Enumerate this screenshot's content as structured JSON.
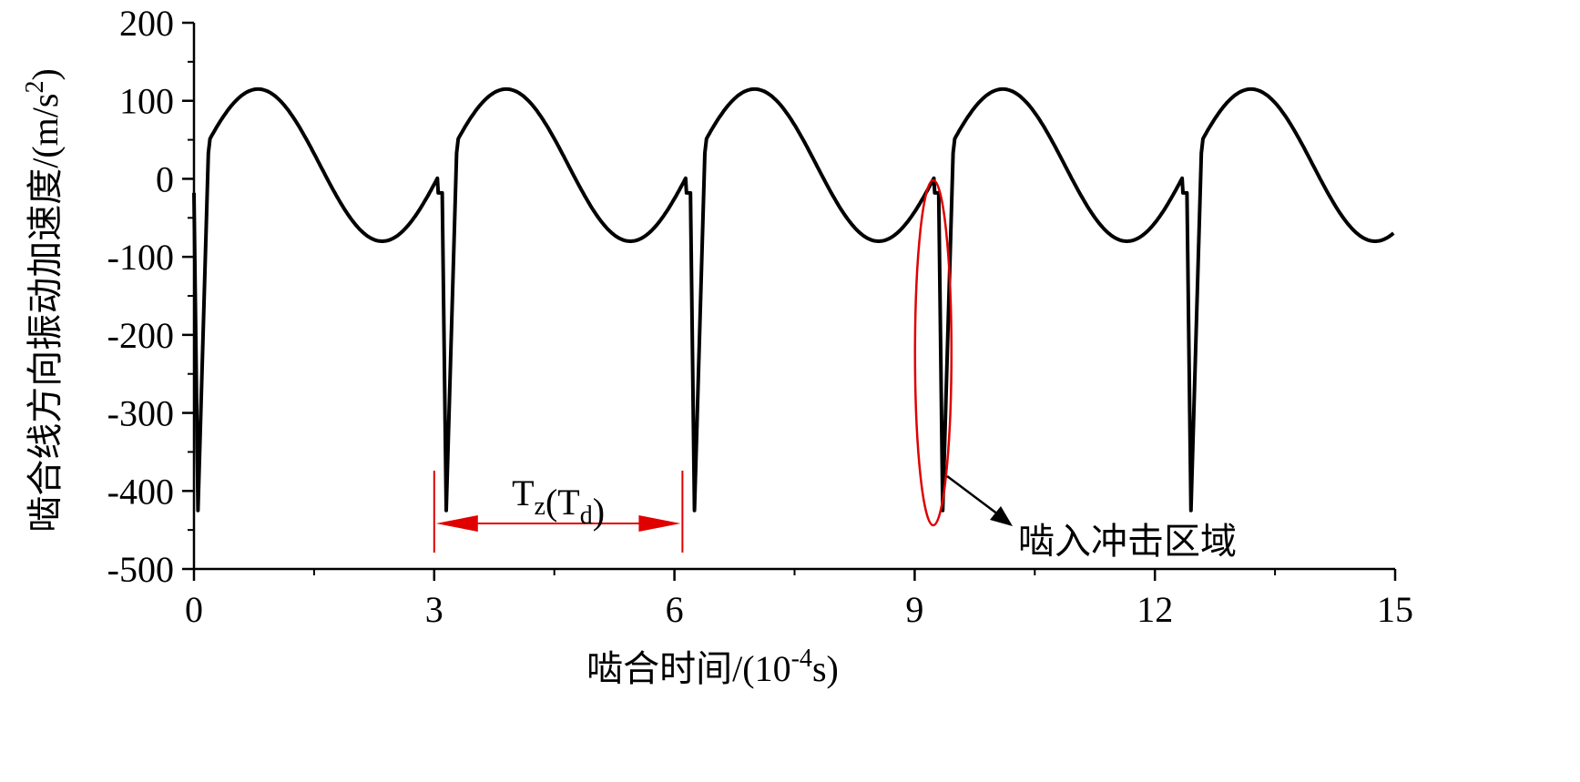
{
  "chart_data": {
    "type": "line",
    "xlabel": "啮合时间/(10",
    "xlabel_sup": "-4",
    "xlabel_tail": "s)",
    "ylabel": "啮合线方向振动加速度/(m/s",
    "ylabel_sup": "2",
    "ylabel_tail": ")",
    "xlim": [
      0,
      15
    ],
    "ylim": [
      -500,
      200
    ],
    "x_ticks": [
      0,
      3,
      6,
      9,
      12,
      15
    ],
    "x_tick_labels": [
      "0",
      "3",
      "6",
      "9",
      "12",
      "15"
    ],
    "y_ticks": [
      200,
      100,
      0,
      -100,
      -200,
      -300,
      -400,
      -500
    ],
    "y_tick_labels": [
      "200",
      "100",
      "0",
      "-100",
      "-200",
      "-300",
      "-400",
      "-500"
    ],
    "grid": false,
    "line_color": "#000000",
    "annotation_color": "#e00000",
    "series": [
      {
        "period": 3.1,
        "cycle_start_points": [
          [
            0.0,
            -18
          ],
          [
            0.05,
            -425
          ],
          [
            0.18,
            33
          ],
          [
            0.8,
            115
          ],
          [
            1.5,
            20
          ],
          [
            2.05,
            -60
          ],
          [
            2.35,
            -80
          ],
          [
            2.7,
            -60
          ],
          [
            3.05,
            -18
          ]
        ],
        "peak": 115,
        "trough": -80,
        "impact_min": -425,
        "values_note_x": [
          0,
          0.05,
          0.18,
          0.8,
          2.35,
          3.05,
          3.1,
          3.15,
          3.28,
          3.9,
          5.45,
          6.15
        ]
      }
    ],
    "annotations": {
      "period_label_main": "T",
      "period_label_sub1": "z",
      "period_label_mid": "(T",
      "period_label_sub2": "d",
      "period_label_end": ")",
      "period_start": 3.0,
      "period_end": 6.1,
      "impact_label": "啮入冲击区域",
      "impact_x": 9.3,
      "impact_y_center": -225
    }
  }
}
